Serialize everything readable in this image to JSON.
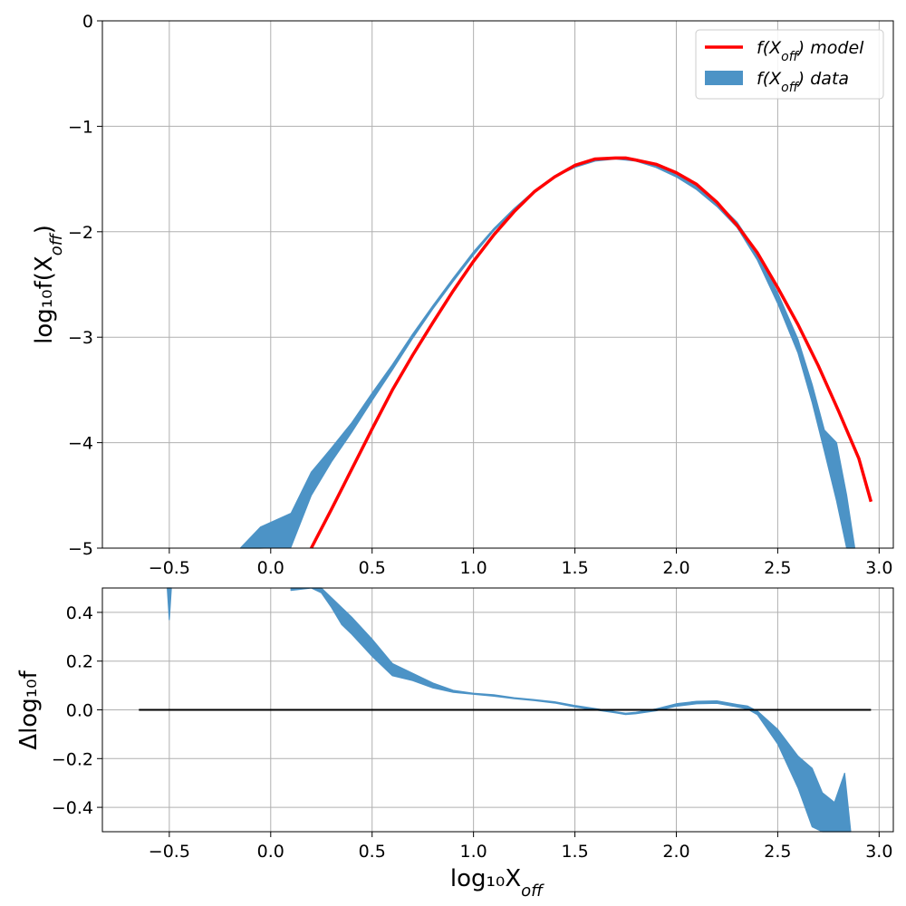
{
  "chart_data": [
    {
      "type": "area",
      "panel": "main",
      "xlabel": "log₁₀X",
      "xlabel_sub": "off",
      "ylabel": "log₁₀f(X",
      "ylabel_sub": "off",
      "ylabel_tail": ")",
      "xlim": [
        -0.83,
        3.07
      ],
      "ylim": [
        -5,
        0
      ],
      "xticks": [
        -0.5,
        0.0,
        0.5,
        1.0,
        1.5,
        2.0,
        2.5,
        3.0
      ],
      "xtick_labels": [
        "−0.5",
        "0.0",
        "0.5",
        "1.0",
        "1.5",
        "2.0",
        "2.5",
        "3.0"
      ],
      "yticks": [
        0,
        -1,
        -2,
        -3,
        -4,
        -5
      ],
      "ytick_labels": [
        "0",
        "−1",
        "−2",
        "−3",
        "−4",
        "−5"
      ],
      "grid": true,
      "legend_position": "top-right",
      "legend": [
        {
          "text_pre": "f(X",
          "sub": "off",
          "text_post": ") model",
          "style": "line",
          "color": "#ff0000"
        },
        {
          "text_pre": "f(X",
          "sub": "off",
          "text_post": ") data",
          "style": "patch",
          "color": "#4c93c6"
        }
      ],
      "series": [
        {
          "kind": "band",
          "color": "#4c93c6",
          "x": [
            -0.15,
            -0.05,
            0.1,
            0.2,
            0.3,
            0.4,
            0.5,
            0.6,
            0.7,
            0.8,
            0.9,
            1.0,
            1.1,
            1.2,
            1.3,
            1.4,
            1.5,
            1.6,
            1.7,
            1.8,
            1.9,
            2.0,
            2.1,
            2.2,
            2.3,
            2.4,
            2.5,
            2.6,
            2.67,
            2.73,
            2.79,
            2.84,
            2.88
          ],
          "upper": [
            -5.0,
            -4.8,
            -4.67,
            -4.28,
            -4.05,
            -3.81,
            -3.53,
            -3.26,
            -2.97,
            -2.7,
            -2.44,
            -2.19,
            -1.97,
            -1.78,
            -1.61,
            -1.47,
            -1.38,
            -1.32,
            -1.3,
            -1.31,
            -1.37,
            -1.45,
            -1.57,
            -1.72,
            -1.91,
            -2.2,
            -2.58,
            -3.02,
            -3.45,
            -3.88,
            -4.0,
            -4.5,
            -5.0
          ],
          "lower": [
            -5.0,
            -5.0,
            -4.99,
            -4.5,
            -4.18,
            -3.9,
            -3.6,
            -3.31,
            -3.01,
            -2.73,
            -2.47,
            -2.22,
            -1.99,
            -1.8,
            -1.63,
            -1.48,
            -1.39,
            -1.33,
            -1.31,
            -1.33,
            -1.39,
            -1.48,
            -1.6,
            -1.76,
            -1.96,
            -2.27,
            -2.68,
            -3.15,
            -3.62,
            -4.08,
            -4.55,
            -5.0,
            -5.0
          ]
        },
        {
          "kind": "line",
          "color": "#ff0000",
          "x": [
            0.2,
            0.3,
            0.4,
            0.5,
            0.6,
            0.7,
            0.8,
            0.9,
            1.0,
            1.1,
            1.2,
            1.3,
            1.4,
            1.5,
            1.6,
            1.7,
            1.75,
            1.8,
            1.9,
            2.0,
            2.1,
            2.2,
            2.3,
            2.4,
            2.5,
            2.6,
            2.7,
            2.8,
            2.9,
            2.96
          ],
          "y": [
            -5.0,
            -4.63,
            -4.25,
            -3.87,
            -3.5,
            -3.17,
            -2.86,
            -2.56,
            -2.28,
            -2.03,
            -1.81,
            -1.62,
            -1.48,
            -1.37,
            -1.31,
            -1.3,
            -1.3,
            -1.32,
            -1.36,
            -1.44,
            -1.55,
            -1.72,
            -1.94,
            -2.2,
            -2.53,
            -2.88,
            -3.27,
            -3.7,
            -4.15,
            -4.56
          ]
        }
      ]
    },
    {
      "type": "area",
      "panel": "residual",
      "xlabel": "log₁₀X",
      "xlabel_sub": "off",
      "ylabel": "Δlog₁₀f",
      "xlim": [
        -0.83,
        3.07
      ],
      "ylim": [
        -0.5,
        0.5
      ],
      "xticks": [
        -0.5,
        0.0,
        0.5,
        1.0,
        1.5,
        2.0,
        2.5,
        3.0
      ],
      "xtick_labels": [
        "−0.5",
        "0.0",
        "0.5",
        "1.0",
        "1.5",
        "2.0",
        "2.5",
        "3.0"
      ],
      "yticks": [
        0.4,
        0.2,
        0.0,
        -0.2,
        -0.4
      ],
      "ytick_labels": [
        "0.4",
        "0.2",
        "0.0",
        "−0.2",
        "−0.4"
      ],
      "grid": true,
      "series": [
        {
          "kind": "band",
          "color": "#4c93c6",
          "x": [
            0.1,
            0.2,
            0.25,
            0.3,
            0.35,
            0.4,
            0.5,
            0.6,
            0.7,
            0.8,
            0.9,
            1.0,
            1.1,
            1.2,
            1.3,
            1.4,
            1.5,
            1.6,
            1.7,
            1.75,
            1.8,
            1.9,
            2.0,
            2.1,
            2.2,
            2.3,
            2.35,
            2.4,
            2.5,
            2.6,
            2.67,
            2.72,
            2.78,
            2.83,
            2.86
          ],
          "upper": [
            0.5,
            0.5,
            0.5,
            0.46,
            0.42,
            0.38,
            0.29,
            0.19,
            0.15,
            0.11,
            0.08,
            0.068,
            0.062,
            0.05,
            0.042,
            0.033,
            0.018,
            0.005,
            -0.008,
            -0.014,
            -0.01,
            0.004,
            0.025,
            0.035,
            0.037,
            0.022,
            0.016,
            -0.005,
            -0.08,
            -0.19,
            -0.24,
            -0.34,
            -0.38,
            -0.26,
            -0.5
          ],
          "lower": [
            0.49,
            0.5,
            0.48,
            0.42,
            0.35,
            0.31,
            0.22,
            0.14,
            0.12,
            0.09,
            0.072,
            0.064,
            0.056,
            0.046,
            0.038,
            0.028,
            0.012,
            0.0,
            -0.012,
            -0.019,
            -0.016,
            -0.004,
            0.015,
            0.025,
            0.027,
            0.012,
            0.004,
            -0.02,
            -0.14,
            -0.32,
            -0.48,
            -0.5,
            -0.5,
            -0.5,
            -0.5
          ]
        },
        {
          "kind": "band",
          "color": "#4c93c6",
          "x": [
            -0.51,
            -0.5,
            -0.49
          ],
          "upper": [
            0.5,
            0.5,
            0.5
          ],
          "lower": [
            0.5,
            0.37,
            0.5
          ]
        },
        {
          "kind": "line",
          "color": "#000000",
          "x": [
            -0.65,
            2.96
          ],
          "y": [
            0.0,
            0.0
          ]
        }
      ]
    }
  ]
}
